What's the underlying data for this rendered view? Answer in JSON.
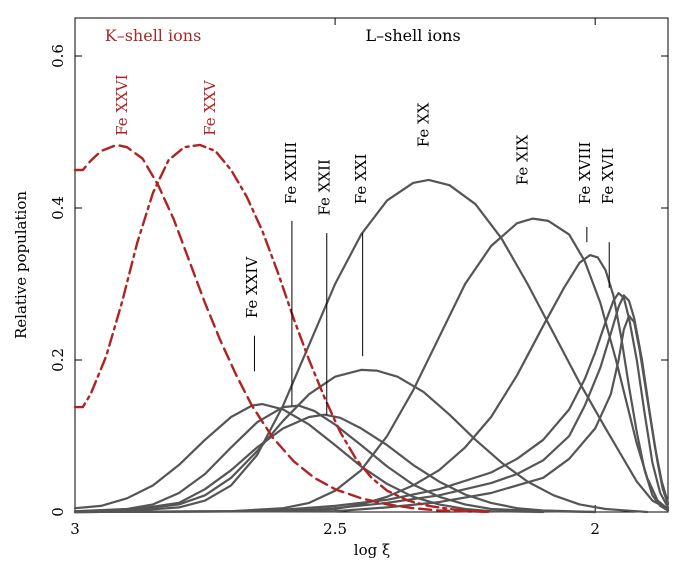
{
  "chart_data": {
    "type": "line",
    "xlabel": "log ξ",
    "ylabel": "Relative population",
    "xlim": [
      3.0,
      1.86
    ],
    "ylim": [
      0,
      0.65
    ],
    "x_reversed": true,
    "xticks": [
      3,
      2.5,
      2
    ],
    "xtick_labels": [
      "3",
      "2.5",
      "2"
    ],
    "yticks": [
      0,
      0.2,
      0.4,
      0.6
    ],
    "ytick_labels": [
      "0",
      "0.2",
      "0.4",
      "0.6"
    ],
    "headers": [
      {
        "text": "K–shell ions",
        "color": "#a52a2a",
        "x": 2.85,
        "y": 0.62
      },
      {
        "text": "L–shell ions",
        "color": "#000000",
        "x": 2.35,
        "y": 0.62
      }
    ],
    "colors": {
      "k_shell": "#b22222",
      "l_shell": "#555555"
    },
    "series": [
      {
        "name": "Fe XXVI",
        "group": "k",
        "dash": "12,6",
        "label_x": 2.91,
        "label_y": 0.495,
        "points": [
          [
            3.0,
            0.45
          ],
          [
            2.985,
            0.45
          ],
          [
            2.97,
            0.462
          ],
          [
            2.95,
            0.475
          ],
          [
            2.92,
            0.483
          ],
          [
            2.9,
            0.48
          ],
          [
            2.87,
            0.465
          ],
          [
            2.84,
            0.43
          ],
          [
            2.81,
            0.385
          ],
          [
            2.78,
            0.33
          ],
          [
            2.75,
            0.275
          ],
          [
            2.72,
            0.225
          ],
          [
            2.69,
            0.18
          ],
          [
            2.66,
            0.14
          ],
          [
            2.62,
            0.098
          ],
          [
            2.58,
            0.067
          ],
          [
            2.54,
            0.045
          ],
          [
            2.5,
            0.03
          ],
          [
            2.45,
            0.018
          ],
          [
            2.4,
            0.01
          ],
          [
            2.35,
            0.005
          ],
          [
            2.3,
            0.002
          ],
          [
            2.2,
            0.0
          ]
        ]
      },
      {
        "name": "Fe XXV",
        "group": "k",
        "dash": "12,5,3,5",
        "label_x": 2.74,
        "label_y": 0.495,
        "points": [
          [
            3.0,
            0.138
          ],
          [
            2.985,
            0.138
          ],
          [
            2.97,
            0.155
          ],
          [
            2.94,
            0.205
          ],
          [
            2.91,
            0.275
          ],
          [
            2.88,
            0.355
          ],
          [
            2.85,
            0.42
          ],
          [
            2.82,
            0.463
          ],
          [
            2.79,
            0.48
          ],
          [
            2.76,
            0.483
          ],
          [
            2.73,
            0.475
          ],
          [
            2.7,
            0.45
          ],
          [
            2.67,
            0.415
          ],
          [
            2.64,
            0.37
          ],
          [
            2.61,
            0.315
          ],
          [
            2.58,
            0.255
          ],
          [
            2.55,
            0.2
          ],
          [
            2.52,
            0.15
          ],
          [
            2.49,
            0.105
          ],
          [
            2.46,
            0.07
          ],
          [
            2.43,
            0.045
          ],
          [
            2.4,
            0.028
          ],
          [
            2.36,
            0.015
          ],
          [
            2.32,
            0.008
          ],
          [
            2.27,
            0.003
          ],
          [
            2.2,
            0.0
          ]
        ]
      },
      {
        "name": "Fe XXIV",
        "group": "l",
        "label_x": 2.66,
        "label_y": 0.255,
        "leader": [
          2.655,
          0.232,
          2.655,
          0.185
        ],
        "points": [
          [
            3.0,
            0.005
          ],
          [
            2.95,
            0.008
          ],
          [
            2.9,
            0.018
          ],
          [
            2.85,
            0.035
          ],
          [
            2.8,
            0.062
          ],
          [
            2.75,
            0.095
          ],
          [
            2.7,
            0.125
          ],
          [
            2.66,
            0.14
          ],
          [
            2.64,
            0.142
          ],
          [
            2.6,
            0.135
          ],
          [
            2.55,
            0.115
          ],
          [
            2.5,
            0.088
          ],
          [
            2.45,
            0.06
          ],
          [
            2.4,
            0.037
          ],
          [
            2.35,
            0.02
          ],
          [
            2.3,
            0.01
          ],
          [
            2.25,
            0.004
          ],
          [
            2.2,
            0.001
          ],
          [
            2.1,
            0.0
          ]
        ]
      },
      {
        "name": "Fe XXIII",
        "group": "l",
        "label_x": 2.585,
        "label_y": 0.405,
        "leader": [
          2.583,
          0.383,
          2.583,
          0.14
        ],
        "points": [
          [
            3.0,
            0.001
          ],
          [
            2.9,
            0.004
          ],
          [
            2.85,
            0.01
          ],
          [
            2.8,
            0.025
          ],
          [
            2.75,
            0.05
          ],
          [
            2.7,
            0.085
          ],
          [
            2.65,
            0.118
          ],
          [
            2.6,
            0.138
          ],
          [
            2.57,
            0.14
          ],
          [
            2.54,
            0.133
          ],
          [
            2.5,
            0.115
          ],
          [
            2.45,
            0.088
          ],
          [
            2.4,
            0.06
          ],
          [
            2.35,
            0.036
          ],
          [
            2.3,
            0.02
          ],
          [
            2.25,
            0.01
          ],
          [
            2.2,
            0.004
          ],
          [
            2.1,
            0.001
          ],
          [
            2.0,
            0.0
          ]
        ]
      },
      {
        "name": "Fe XXII",
        "group": "l",
        "label_x": 2.52,
        "label_y": 0.39,
        "leader": [
          2.516,
          0.367,
          2.516,
          0.128
        ],
        "points": [
          [
            3.0,
            0.0
          ],
          [
            2.9,
            0.002
          ],
          [
            2.8,
            0.012
          ],
          [
            2.75,
            0.03
          ],
          [
            2.7,
            0.055
          ],
          [
            2.65,
            0.085
          ],
          [
            2.6,
            0.11
          ],
          [
            2.55,
            0.125
          ],
          [
            2.52,
            0.128
          ],
          [
            2.49,
            0.124
          ],
          [
            2.45,
            0.11
          ],
          [
            2.4,
            0.088
          ],
          [
            2.35,
            0.062
          ],
          [
            2.3,
            0.04
          ],
          [
            2.25,
            0.023
          ],
          [
            2.2,
            0.012
          ],
          [
            2.15,
            0.005
          ],
          [
            2.1,
            0.002
          ],
          [
            2.0,
            0.0
          ]
        ]
      },
      {
        "name": "Fe XXI",
        "group": "l",
        "label_x": 2.45,
        "label_y": 0.405,
        "leader": [
          2.447,
          0.367,
          2.447,
          0.205
        ],
        "points": [
          [
            3.0,
            0.0
          ],
          [
            2.9,
            0.002
          ],
          [
            2.8,
            0.01
          ],
          [
            2.75,
            0.022
          ],
          [
            2.7,
            0.045
          ],
          [
            2.65,
            0.08
          ],
          [
            2.6,
            0.12
          ],
          [
            2.55,
            0.155
          ],
          [
            2.5,
            0.178
          ],
          [
            2.45,
            0.187
          ],
          [
            2.42,
            0.186
          ],
          [
            2.38,
            0.178
          ],
          [
            2.33,
            0.158
          ],
          [
            2.28,
            0.128
          ],
          [
            2.23,
            0.095
          ],
          [
            2.18,
            0.065
          ],
          [
            2.13,
            0.04
          ],
          [
            2.08,
            0.022
          ],
          [
            2.03,
            0.01
          ],
          [
            1.98,
            0.004
          ],
          [
            1.9,
            0.0
          ]
        ]
      },
      {
        "name": "Fe XX",
        "group": "l",
        "label_x": 2.33,
        "label_y": 0.48,
        "points": [
          [
            3.0,
            0.0
          ],
          [
            2.9,
            0.001
          ],
          [
            2.8,
            0.006
          ],
          [
            2.75,
            0.015
          ],
          [
            2.7,
            0.035
          ],
          [
            2.65,
            0.075
          ],
          [
            2.6,
            0.14
          ],
          [
            2.55,
            0.22
          ],
          [
            2.5,
            0.3
          ],
          [
            2.45,
            0.365
          ],
          [
            2.4,
            0.41
          ],
          [
            2.35,
            0.433
          ],
          [
            2.32,
            0.437
          ],
          [
            2.28,
            0.43
          ],
          [
            2.23,
            0.405
          ],
          [
            2.18,
            0.36
          ],
          [
            2.13,
            0.3
          ],
          [
            2.08,
            0.235
          ],
          [
            2.03,
            0.17
          ],
          [
            1.98,
            0.11
          ],
          [
            1.95,
            0.075
          ],
          [
            1.92,
            0.04
          ],
          [
            1.89,
            0.015
          ],
          [
            1.86,
            0.004
          ]
        ]
      },
      {
        "name": "Fe XIX",
        "group": "l",
        "label_x": 2.14,
        "label_y": 0.43,
        "points": [
          [
            3.0,
            0.0
          ],
          [
            2.7,
            0.001
          ],
          [
            2.6,
            0.005
          ],
          [
            2.55,
            0.012
          ],
          [
            2.5,
            0.028
          ],
          [
            2.45,
            0.055
          ],
          [
            2.4,
            0.1
          ],
          [
            2.35,
            0.16
          ],
          [
            2.3,
            0.23
          ],
          [
            2.25,
            0.3
          ],
          [
            2.2,
            0.35
          ],
          [
            2.15,
            0.38
          ],
          [
            2.12,
            0.386
          ],
          [
            2.09,
            0.383
          ],
          [
            2.05,
            0.365
          ],
          [
            2.02,
            0.33
          ],
          [
            1.99,
            0.275
          ],
          [
            1.96,
            0.2
          ],
          [
            1.94,
            0.145
          ],
          [
            1.92,
            0.09
          ],
          [
            1.9,
            0.045
          ],
          [
            1.88,
            0.015
          ],
          [
            1.86,
            0.004
          ]
        ]
      },
      {
        "name": "Fe XVIII",
        "group": "l",
        "label_x": 2.02,
        "label_y": 0.405,
        "leader": [
          2.016,
          0.375,
          2.016,
          0.355
        ],
        "points": [
          [
            3.0,
            0.0
          ],
          [
            2.6,
            0.001
          ],
          [
            2.5,
            0.004
          ],
          [
            2.45,
            0.01
          ],
          [
            2.4,
            0.02
          ],
          [
            2.35,
            0.035
          ],
          [
            2.3,
            0.055
          ],
          [
            2.25,
            0.085
          ],
          [
            2.2,
            0.125
          ],
          [
            2.15,
            0.18
          ],
          [
            2.1,
            0.245
          ],
          [
            2.06,
            0.295
          ],
          [
            2.03,
            0.328
          ],
          [
            2.01,
            0.338
          ],
          [
            1.995,
            0.335
          ],
          [
            1.98,
            0.318
          ],
          [
            1.965,
            0.285
          ],
          [
            1.95,
            0.23
          ],
          [
            1.935,
            0.165
          ],
          [
            1.92,
            0.105
          ],
          [
            1.905,
            0.055
          ],
          [
            1.89,
            0.022
          ],
          [
            1.875,
            0.008
          ],
          [
            1.86,
            0.002
          ]
        ]
      },
      {
        "name": "Fe XVII",
        "group": "l",
        "label_x": 1.975,
        "label_y": 0.405,
        "leader": [
          1.973,
          0.355,
          1.973,
          0.295
        ],
        "points": [
          [
            3.0,
            0.0
          ],
          [
            2.7,
            0.001
          ],
          [
            2.6,
            0.003
          ],
          [
            2.5,
            0.008
          ],
          [
            2.4,
            0.016
          ],
          [
            2.3,
            0.03
          ],
          [
            2.2,
            0.052
          ],
          [
            2.15,
            0.07
          ],
          [
            2.1,
            0.095
          ],
          [
            2.05,
            0.135
          ],
          [
            2.02,
            0.175
          ],
          [
            2.0,
            0.21
          ],
          [
            1.98,
            0.25
          ],
          [
            1.965,
            0.278
          ],
          [
            1.955,
            0.288
          ],
          [
            1.945,
            0.282
          ],
          [
            1.935,
            0.255
          ],
          [
            1.92,
            0.2
          ],
          [
            1.905,
            0.13
          ],
          [
            1.89,
            0.065
          ],
          [
            1.875,
            0.025
          ],
          [
            1.86,
            0.006
          ]
        ]
      },
      {
        "name": "",
        "group": "l",
        "points": [
          [
            3.0,
            0.0
          ],
          [
            2.6,
            0.001
          ],
          [
            2.5,
            0.005
          ],
          [
            2.4,
            0.012
          ],
          [
            2.3,
            0.022
          ],
          [
            2.2,
            0.038
          ],
          [
            2.15,
            0.05
          ],
          [
            2.1,
            0.068
          ],
          [
            2.05,
            0.1
          ],
          [
            2.02,
            0.14
          ],
          [
            1.99,
            0.19
          ],
          [
            1.97,
            0.235
          ],
          [
            1.955,
            0.27
          ],
          [
            1.945,
            0.285
          ],
          [
            1.935,
            0.278
          ],
          [
            1.925,
            0.255
          ],
          [
            1.91,
            0.2
          ],
          [
            1.895,
            0.13
          ],
          [
            1.88,
            0.065
          ],
          [
            1.87,
            0.03
          ],
          [
            1.86,
            0.01
          ]
        ]
      },
      {
        "name": "",
        "group": "l",
        "points": [
          [
            3.0,
            0.0
          ],
          [
            2.5,
            0.001
          ],
          [
            2.4,
            0.006
          ],
          [
            2.3,
            0.013
          ],
          [
            2.2,
            0.025
          ],
          [
            2.1,
            0.045
          ],
          [
            2.05,
            0.07
          ],
          [
            2.0,
            0.11
          ],
          [
            1.97,
            0.155
          ],
          [
            1.955,
            0.2
          ],
          [
            1.945,
            0.24
          ],
          [
            1.935,
            0.258
          ],
          [
            1.925,
            0.25
          ],
          [
            1.915,
            0.215
          ],
          [
            1.9,
            0.15
          ],
          [
            1.885,
            0.085
          ],
          [
            1.872,
            0.04
          ],
          [
            1.86,
            0.012
          ]
        ]
      }
    ]
  }
}
